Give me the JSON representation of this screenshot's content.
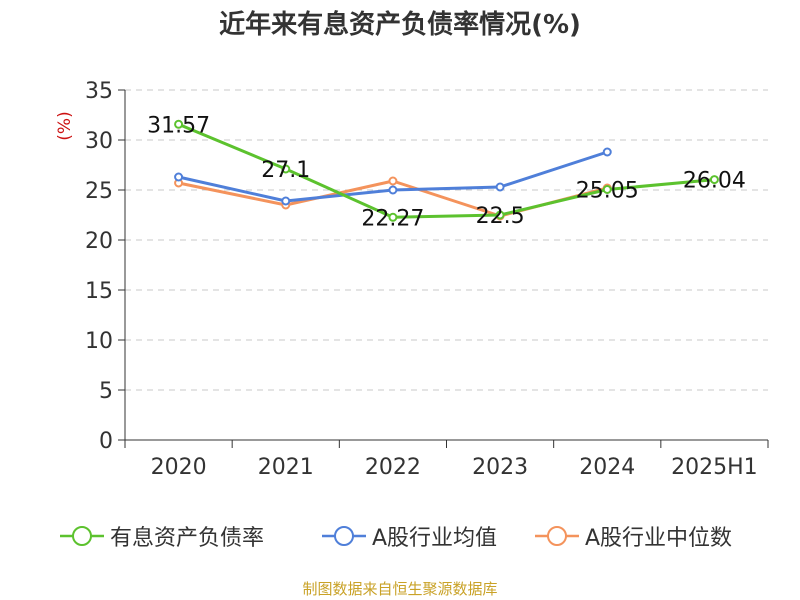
{
  "title": "近年来有息资产负债率情况(%)",
  "source": "制图数据来自恒生聚源数据库",
  "chart_data": {
    "type": "line",
    "title": "近年来有息资产负债率情况(%)",
    "ylabel": "(%)",
    "xlabel": "",
    "categories": [
      "2020",
      "2021",
      "2022",
      "2023",
      "2024",
      "2025H1"
    ],
    "ylim": [
      0,
      35
    ],
    "yticks": [
      "0",
      "5",
      "10",
      "15",
      "20",
      "25",
      "30",
      "35"
    ],
    "grid": "horizontal dashed",
    "legend_position": "bottom",
    "series": [
      {
        "name": "有息资产负债率",
        "color": "#5cc22e",
        "values": [
          31.57,
          27.1,
          22.27,
          22.5,
          25.05,
          26.04
        ],
        "labels": [
          "31.57",
          "27.1",
          "22.27",
          "22.5",
          "25.05",
          "26.04"
        ]
      },
      {
        "name": "A股行业均值",
        "color": "#4f7fd9",
        "values": [
          26.3,
          23.9,
          25.0,
          25.3,
          28.8,
          null
        ],
        "labels": []
      },
      {
        "name": "A股行业中位数",
        "color": "#f4935c",
        "values": [
          25.7,
          23.5,
          25.9,
          22.4,
          25.2,
          null
        ],
        "labels": []
      }
    ]
  }
}
